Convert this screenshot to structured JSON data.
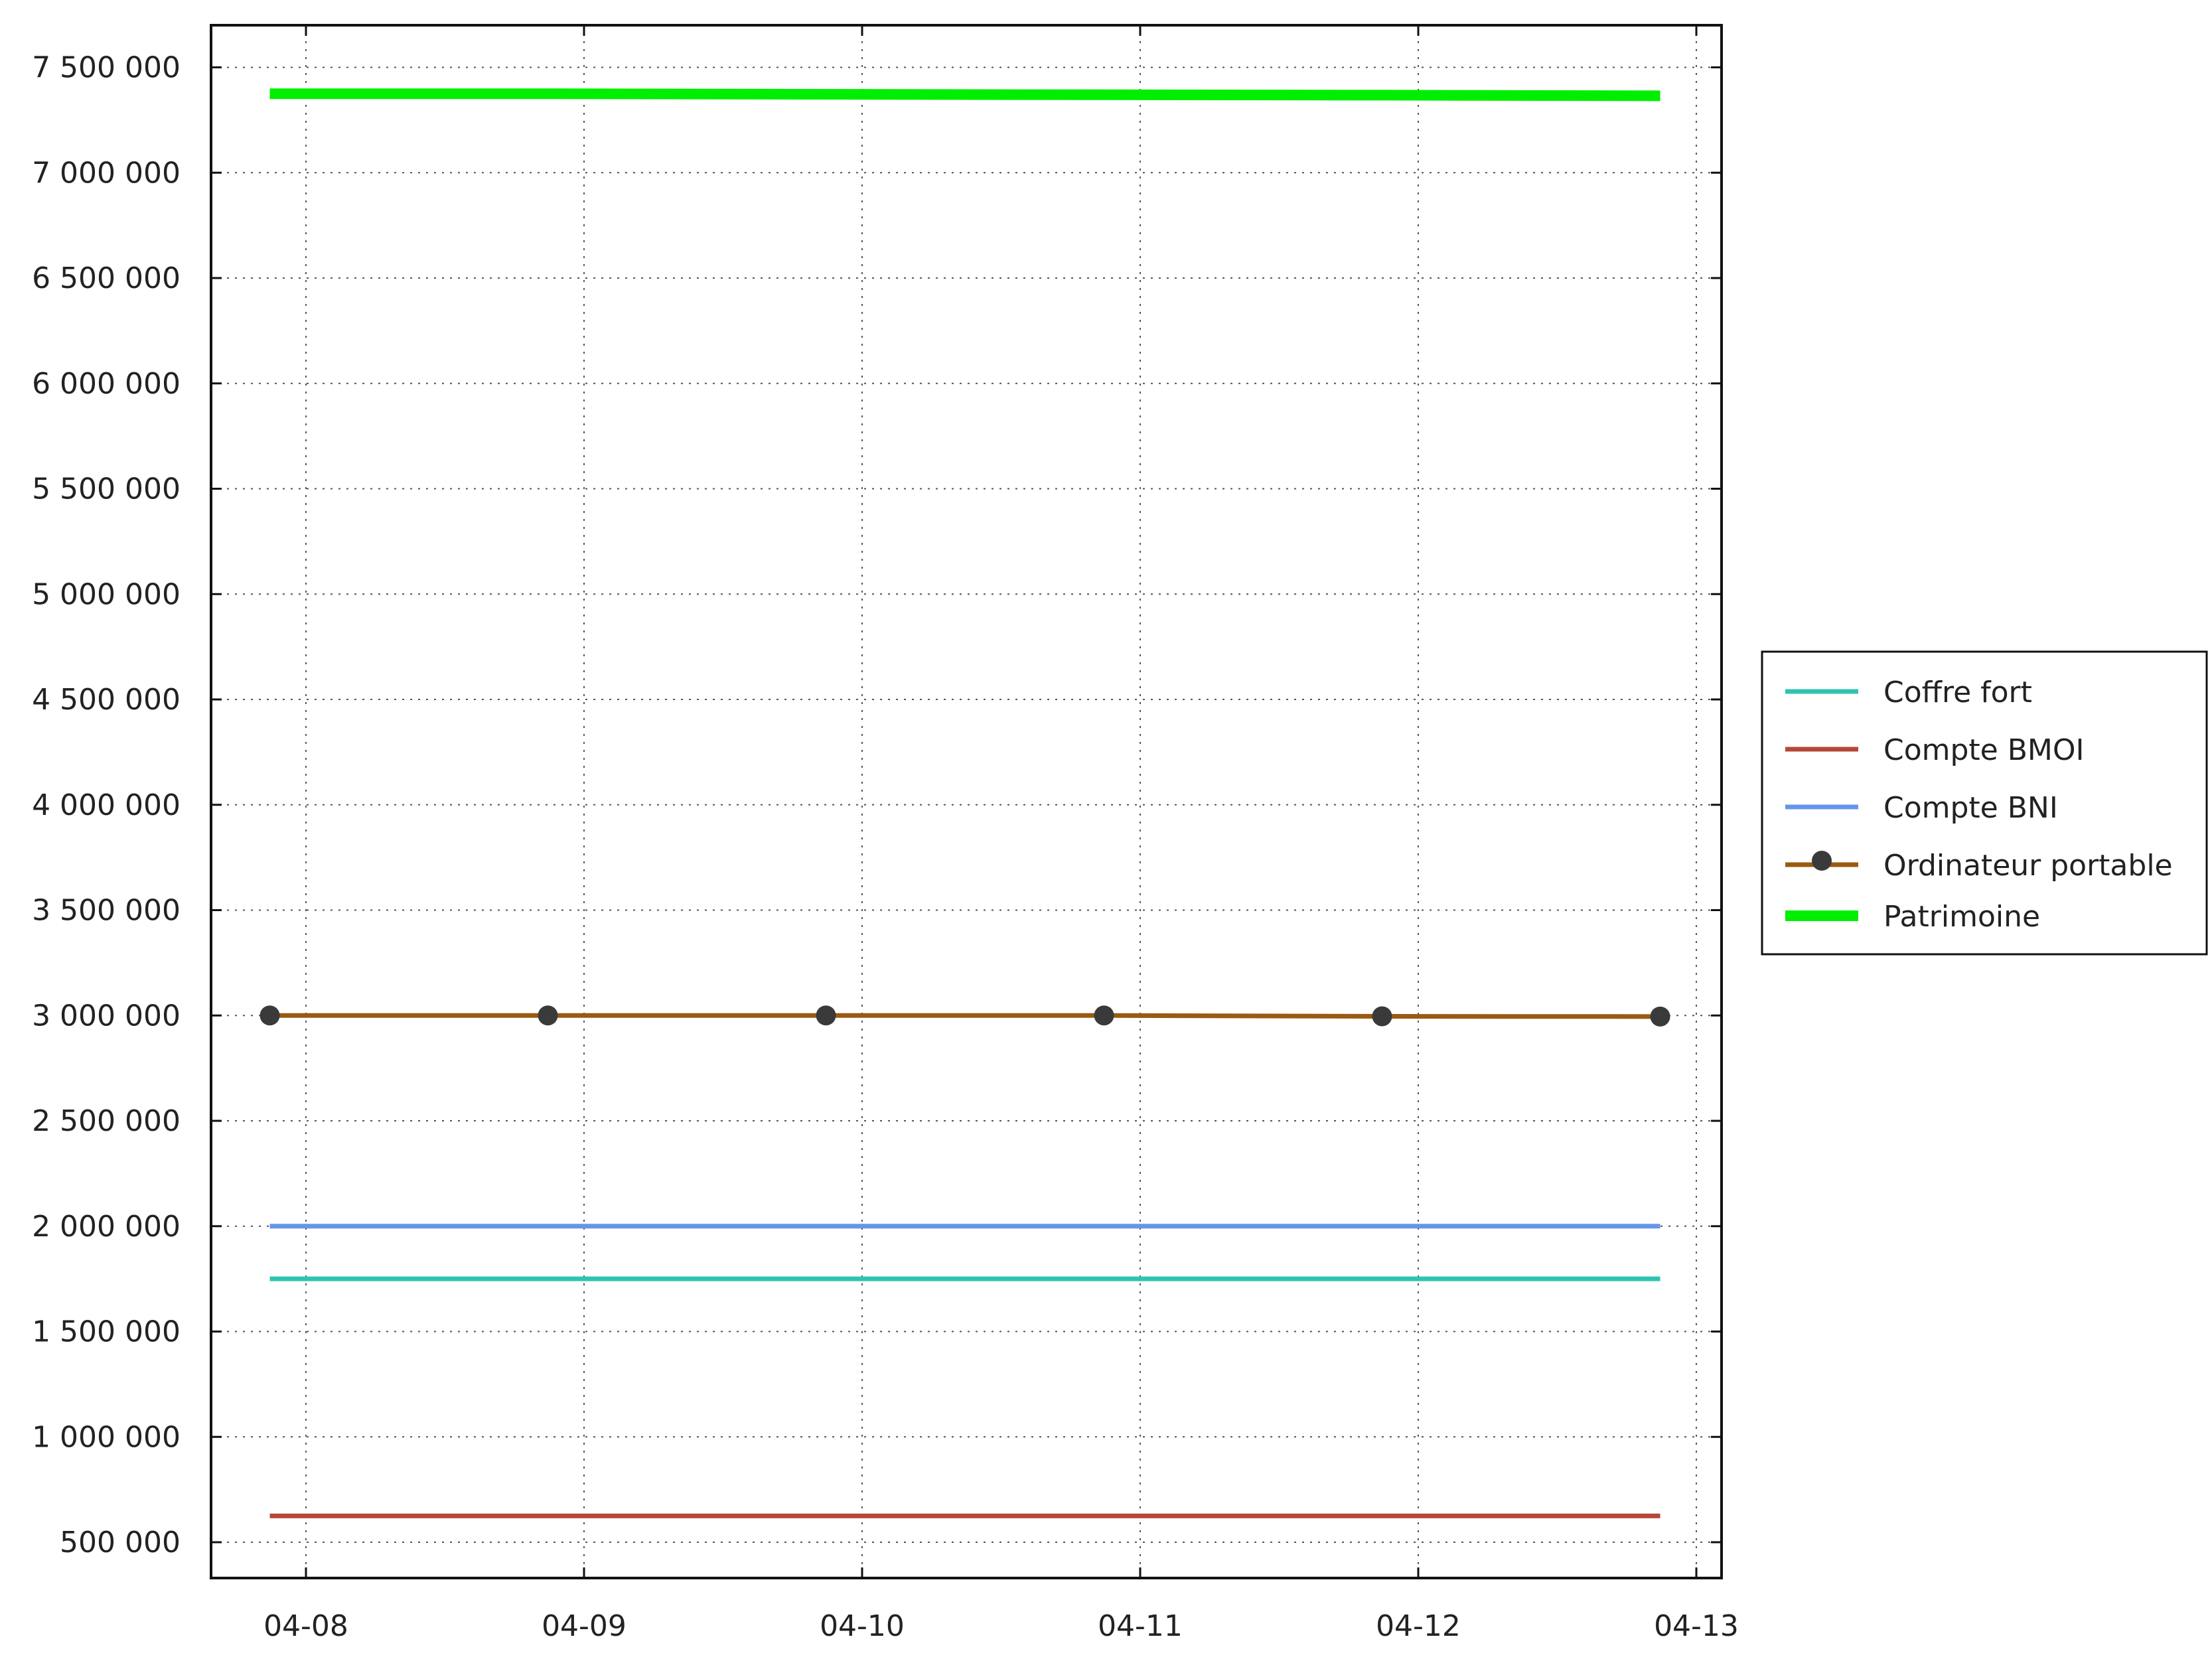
{
  "chart_data": {
    "type": "line",
    "title": "",
    "xlabel": "",
    "ylabel": "",
    "x": [
      "04-08",
      "04-09",
      "04-10",
      "04-11",
      "04-12",
      "04-13"
    ],
    "x_offset_fraction": -0.13,
    "xticks": [
      "04-08",
      "04-09",
      "04-10",
      "04-11",
      "04-12",
      "04-13"
    ],
    "ylim": [
      330000,
      7700000
    ],
    "yticks": [
      500000,
      1000000,
      1500000,
      2000000,
      2500000,
      3000000,
      3500000,
      4000000,
      4500000,
      5000000,
      5500000,
      6000000,
      6500000,
      7000000,
      7500000
    ],
    "ytick_labels": [
      "500 000",
      "1 000 000",
      "1 500 000",
      "2 000 000",
      "2 500 000",
      "3 000 000",
      "3 500 000",
      "4 000 000",
      "4 500 000",
      "5 000 000",
      "5 500 000",
      "6 000 000",
      "6 500 000",
      "7 000 000",
      "7 500 000"
    ],
    "grid": true,
    "legend_position": "right",
    "series": [
      {
        "name": "Coffre fort",
        "color": "#2ec4b0",
        "markers": false,
        "values": [
          1750000,
          1750000,
          1750000,
          1750000,
          1750000,
          1750000
        ]
      },
      {
        "name": "Compte BMOI",
        "color": "#b5473a",
        "markers": false,
        "values": [
          625000,
          625000,
          625000,
          625000,
          625000,
          625000
        ]
      },
      {
        "name": "Compte BNI",
        "color": "#6497e8",
        "markers": false,
        "values": [
          2000000,
          2000000,
          2000000,
          2000000,
          2000000,
          2000000
        ]
      },
      {
        "name": "Ordinateur portable",
        "color": "#9a5a10",
        "markers": true,
        "marker_color": "#3a3a3a",
        "values": [
          3000000,
          3000000,
          3000000,
          3000000,
          2996000,
          2995000
        ]
      },
      {
        "name": "Patrimoine",
        "color": "#00ee00",
        "markers": false,
        "thick": true,
        "values": [
          7375000,
          7375000,
          7372000,
          7370000,
          7368000,
          7365000
        ]
      }
    ]
  }
}
